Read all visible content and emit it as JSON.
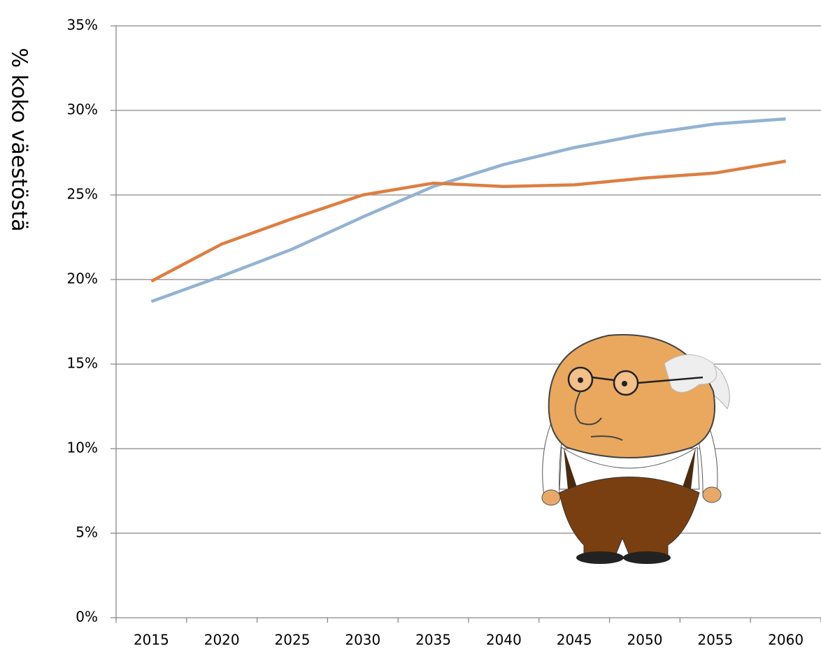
{
  "chart_data": {
    "type": "line",
    "y_label": "% koko väestöstä",
    "categories": [
      "2015",
      "2020",
      "2025",
      "2030",
      "2035",
      "2040",
      "2045",
      "2050",
      "2055",
      "2060"
    ],
    "series": [
      {
        "color": "#93b3d3",
        "values": [
          18.7,
          20.2,
          21.8,
          23.7,
          25.5,
          26.8,
          27.8,
          28.6,
          29.2,
          29.5
        ]
      },
      {
        "color": "#dd7e42",
        "values": [
          19.9,
          22.1,
          23.6,
          25.0,
          25.7,
          25.5,
          25.6,
          26.0,
          26.3,
          27.0
        ]
      }
    ],
    "ylim": [
      0,
      35
    ],
    "yticks": [
      {
        "value": 0,
        "label": "0%"
      },
      {
        "value": 5,
        "label": "5%"
      },
      {
        "value": 10,
        "label": "10%"
      },
      {
        "value": 15,
        "label": "15%"
      },
      {
        "value": 20,
        "label": "20%"
      },
      {
        "value": 25,
        "label": "25%"
      },
      {
        "value": 30,
        "label": "30%"
      },
      {
        "value": 35,
        "label": "35%"
      }
    ],
    "grid": true
  }
}
